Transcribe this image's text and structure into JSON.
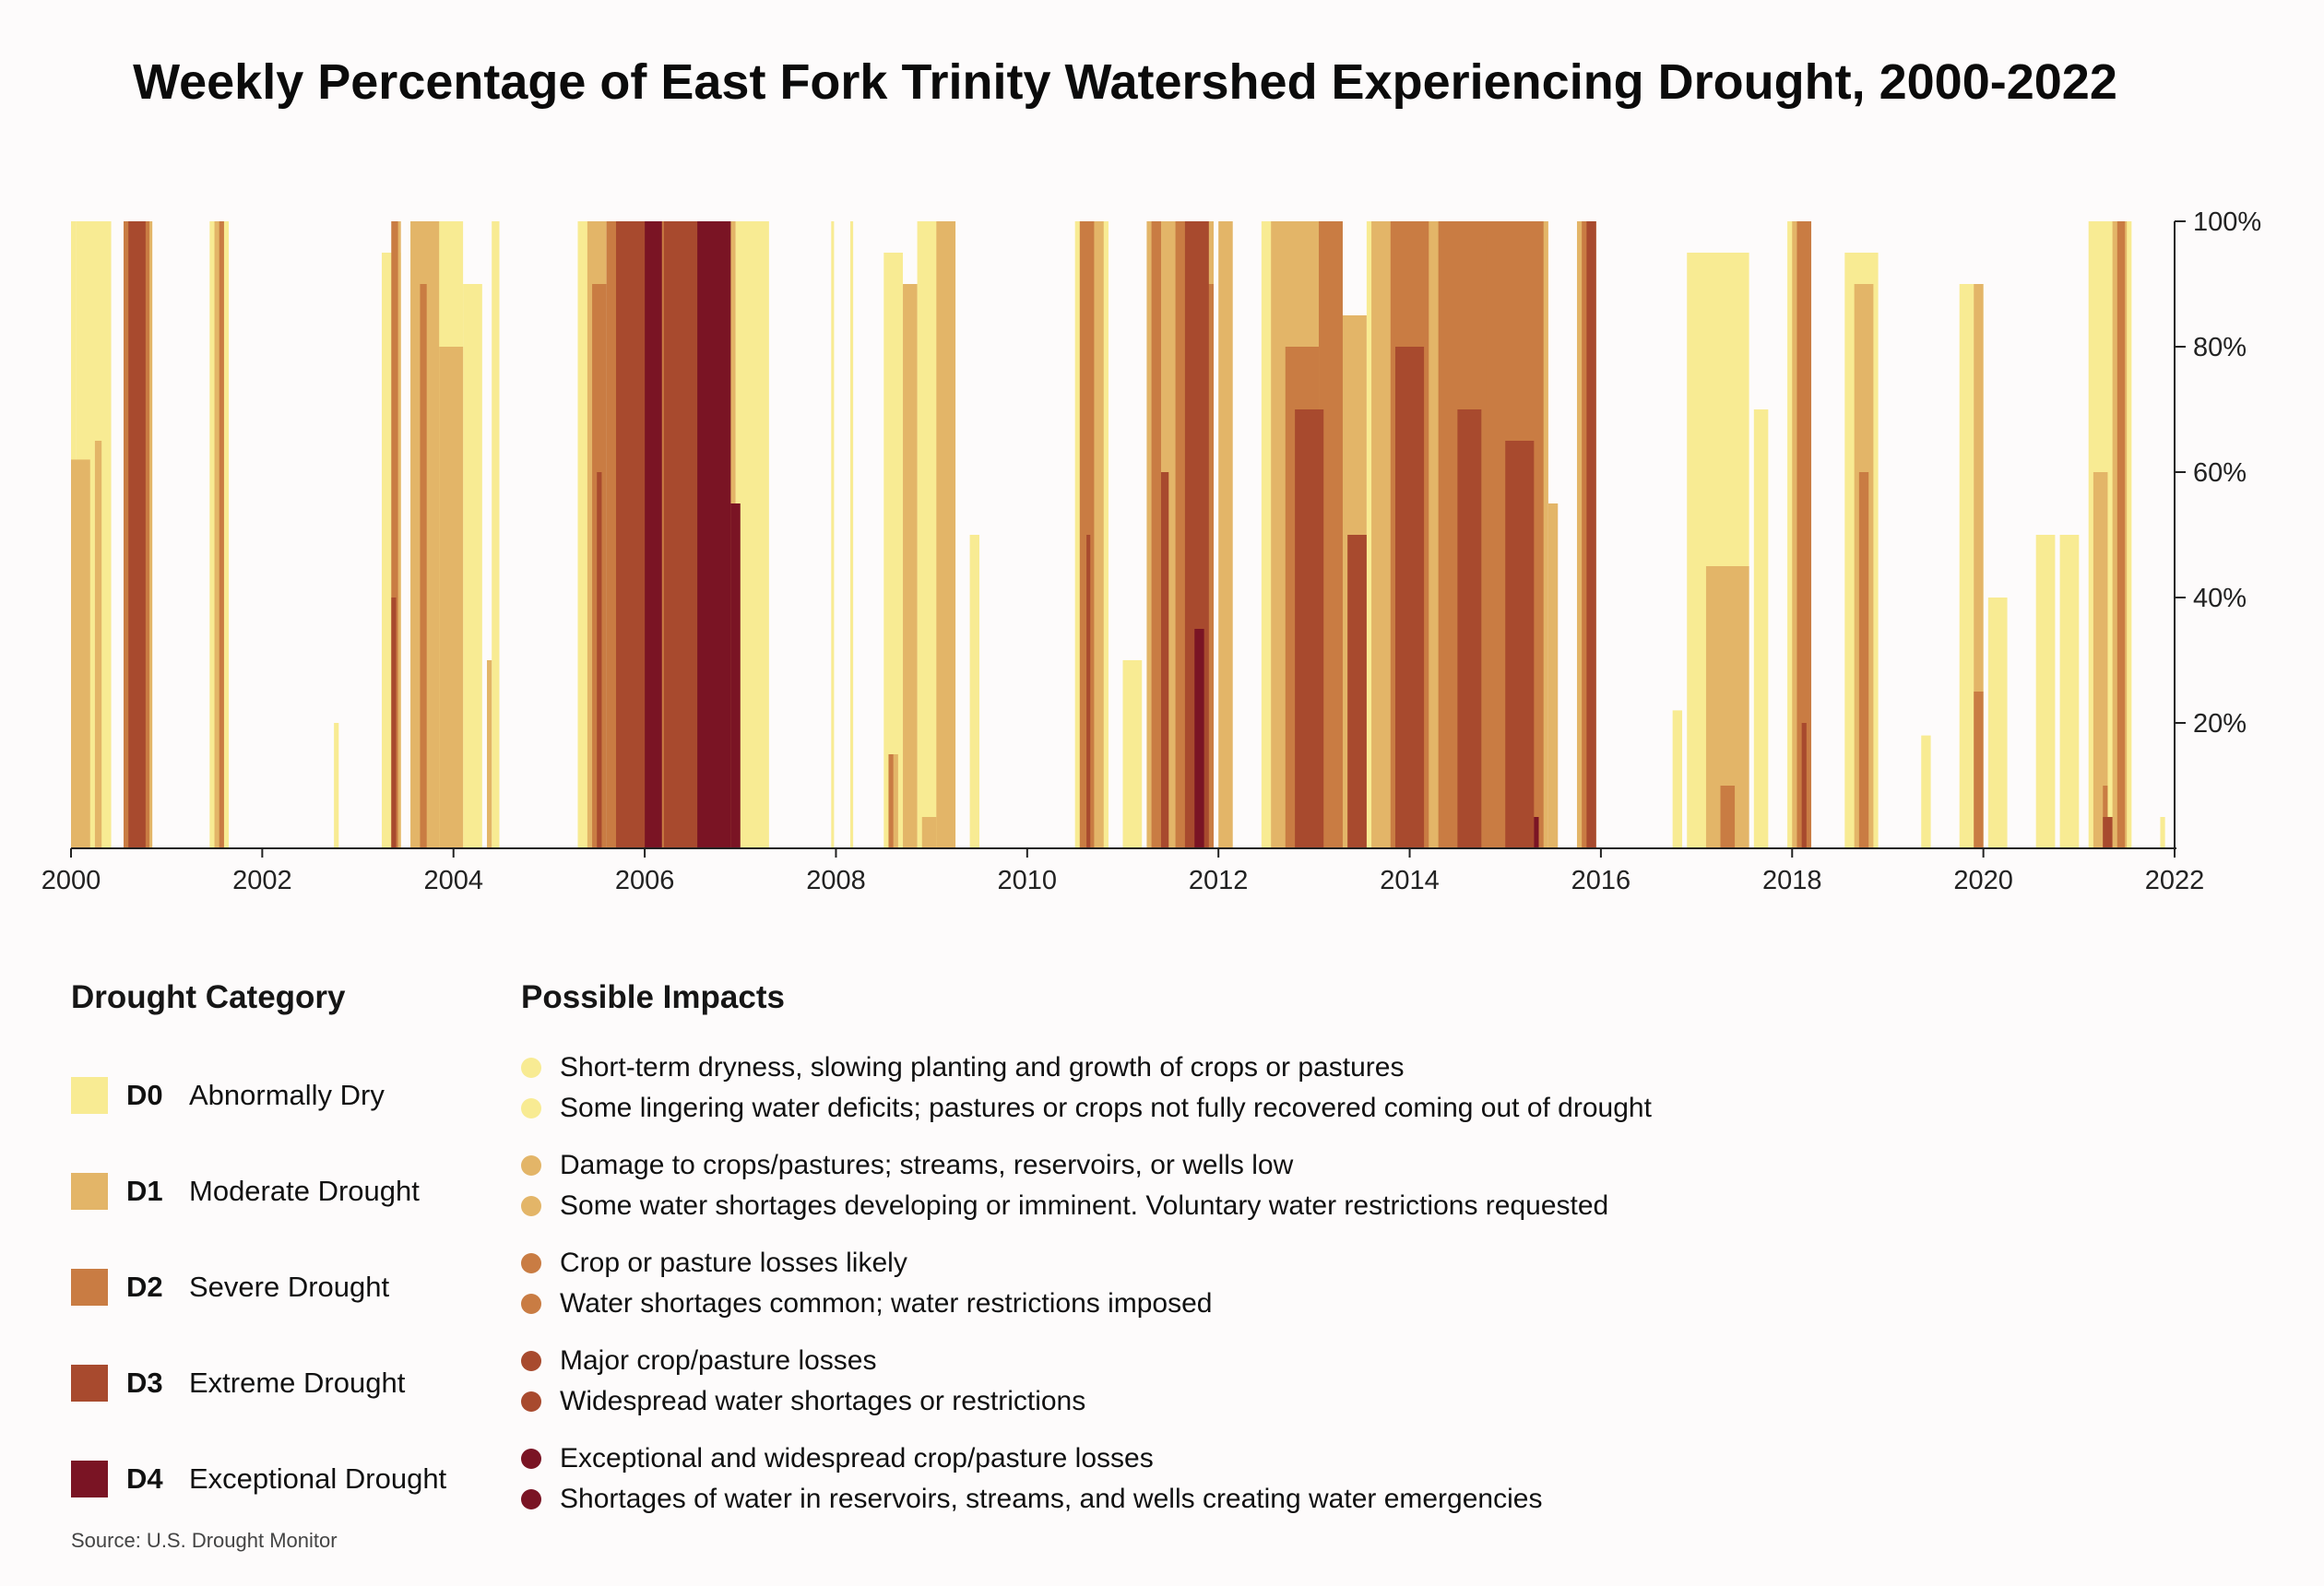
{
  "chart_data": {
    "type": "area",
    "title": "Weekly Percentage of East Fork Trinity Watershed Experiencing Drought, 2000-2022",
    "xlabel": "",
    "ylabel": "",
    "xlim": [
      2000,
      2022
    ],
    "ylim": [
      0,
      100
    ],
    "x_ticks": [
      "2000",
      "2002",
      "2004",
      "2006",
      "2008",
      "2010",
      "2012",
      "2014",
      "2016",
      "2018",
      "2020",
      "2022"
    ],
    "y_ticks": [
      "20%",
      "40%",
      "60%",
      "80%",
      "100%"
    ],
    "series": [
      {
        "name": "D0",
        "color": "#f8eb93",
        "segments": [
          [
            2000.0,
            2000.05,
            100
          ],
          [
            2000.05,
            2000.42,
            100
          ],
          [
            2000.55,
            2000.85,
            100
          ],
          [
            2001.45,
            2001.65,
            100
          ],
          [
            2002.75,
            2002.8,
            20
          ],
          [
            2003.25,
            2003.45,
            95
          ],
          [
            2003.55,
            2004.1,
            100
          ],
          [
            2004.1,
            2004.3,
            90
          ],
          [
            2004.4,
            2004.48,
            100
          ],
          [
            2005.3,
            2005.55,
            100
          ],
          [
            2006.95,
            2007.3,
            100
          ],
          [
            2007.95,
            2007.98,
            100
          ],
          [
            2008.15,
            2008.18,
            100
          ],
          [
            2008.5,
            2008.7,
            95
          ],
          [
            2008.85,
            2009.25,
            100
          ],
          [
            2009.4,
            2009.5,
            50
          ],
          [
            2010.5,
            2010.85,
            100
          ],
          [
            2011.0,
            2011.2,
            30
          ],
          [
            2011.35,
            2011.55,
            100
          ],
          [
            2012.45,
            2012.95,
            100
          ],
          [
            2013.55,
            2013.8,
            100
          ],
          [
            2016.75,
            2016.85,
            22
          ],
          [
            2016.9,
            2017.55,
            95
          ],
          [
            2017.6,
            2017.75,
            70
          ],
          [
            2017.95,
            2018.2,
            100
          ],
          [
            2018.55,
            2018.9,
            95
          ],
          [
            2019.35,
            2019.45,
            18
          ],
          [
            2019.75,
            2020.0,
            90
          ],
          [
            2020.05,
            2020.25,
            40
          ],
          [
            2020.55,
            2020.75,
            50
          ],
          [
            2020.8,
            2021.0,
            50
          ],
          [
            2021.1,
            2021.55,
            100
          ],
          [
            2021.85,
            2021.9,
            5
          ]
        ]
      },
      {
        "name": "D1",
        "color": "#e3b568",
        "segments": [
          [
            2000.0,
            2000.2,
            62
          ],
          [
            2000.25,
            2000.32,
            65
          ],
          [
            2000.55,
            2000.85,
            100
          ],
          [
            2001.5,
            2001.6,
            100
          ],
          [
            2003.35,
            2003.45,
            100
          ],
          [
            2003.55,
            2003.85,
            100
          ],
          [
            2003.85,
            2004.1,
            80
          ],
          [
            2004.35,
            2004.4,
            30
          ],
          [
            2005.4,
            2005.6,
            100
          ],
          [
            2006.7,
            2006.95,
            100
          ],
          [
            2008.55,
            2008.65,
            15
          ],
          [
            2008.7,
            2008.85,
            90
          ],
          [
            2008.9,
            2009.05,
            5
          ],
          [
            2009.05,
            2009.25,
            100
          ],
          [
            2010.55,
            2010.8,
            100
          ],
          [
            2011.25,
            2011.55,
            100
          ],
          [
            2011.7,
            2011.95,
            100
          ],
          [
            2012.0,
            2012.15,
            100
          ],
          [
            2012.55,
            2013.15,
            100
          ],
          [
            2013.15,
            2013.55,
            85
          ],
          [
            2013.6,
            2014.55,
            100
          ],
          [
            2014.55,
            2015.45,
            100
          ],
          [
            2015.45,
            2015.55,
            55
          ],
          [
            2015.75,
            2015.95,
            100
          ],
          [
            2017.1,
            2017.55,
            45
          ],
          [
            2018.0,
            2018.2,
            100
          ],
          [
            2018.65,
            2018.85,
            90
          ],
          [
            2019.9,
            2020.0,
            90
          ],
          [
            2021.15,
            2021.3,
            60
          ],
          [
            2021.35,
            2021.5,
            100
          ]
        ]
      },
      {
        "name": "D2",
        "color": "#c97c43",
        "segments": [
          [
            2000.55,
            2000.82,
            100
          ],
          [
            2001.55,
            2001.6,
            100
          ],
          [
            2003.35,
            2003.42,
            100
          ],
          [
            2003.65,
            2003.72,
            90
          ],
          [
            2005.45,
            2005.6,
            90
          ],
          [
            2005.6,
            2006.75,
            100
          ],
          [
            2008.55,
            2008.6,
            15
          ],
          [
            2010.55,
            2010.7,
            100
          ],
          [
            2011.3,
            2011.4,
            100
          ],
          [
            2011.55,
            2011.75,
            100
          ],
          [
            2011.75,
            2011.95,
            90
          ],
          [
            2012.7,
            2013.05,
            80
          ],
          [
            2013.05,
            2013.3,
            100
          ],
          [
            2013.8,
            2014.2,
            100
          ],
          [
            2014.3,
            2014.8,
            100
          ],
          [
            2014.8,
            2015.4,
            100
          ],
          [
            2015.8,
            2015.95,
            100
          ],
          [
            2017.25,
            2017.4,
            10
          ],
          [
            2018.05,
            2018.2,
            100
          ],
          [
            2018.7,
            2018.8,
            60
          ],
          [
            2019.9,
            2020.0,
            25
          ],
          [
            2021.25,
            2021.3,
            10
          ],
          [
            2021.4,
            2021.48,
            100
          ]
        ]
      },
      {
        "name": "D3",
        "color": "#a84a2e",
        "segments": [
          [
            2000.6,
            2000.78,
            100
          ],
          [
            2003.35,
            2003.4,
            40
          ],
          [
            2005.5,
            2005.55,
            60
          ],
          [
            2005.7,
            2006.0,
            100
          ],
          [
            2006.2,
            2006.6,
            100
          ],
          [
            2010.62,
            2010.66,
            50
          ],
          [
            2011.4,
            2011.48,
            60
          ],
          [
            2011.65,
            2011.9,
            100
          ],
          [
            2012.8,
            2013.1,
            70
          ],
          [
            2013.35,
            2013.55,
            50
          ],
          [
            2013.85,
            2014.15,
            80
          ],
          [
            2014.5,
            2014.75,
            70
          ],
          [
            2015.0,
            2015.3,
            65
          ],
          [
            2015.85,
            2015.95,
            100
          ],
          [
            2018.1,
            2018.15,
            20
          ],
          [
            2021.25,
            2021.35,
            5
          ]
        ]
      },
      {
        "name": "D4",
        "color": "#7a1424",
        "segments": [
          [
            2006.0,
            2006.18,
            100
          ],
          [
            2006.55,
            2006.9,
            100
          ],
          [
            2006.9,
            2007.0,
            55
          ],
          [
            2011.75,
            2011.85,
            35
          ],
          [
            2015.3,
            2015.35,
            5
          ]
        ]
      }
    ]
  },
  "legend": {
    "category_heading": "Drought Category",
    "impacts_heading": "Possible Impacts",
    "categories": [
      {
        "code": "D0",
        "label": "Abnormally Dry",
        "color": "#f8eb93"
      },
      {
        "code": "D1",
        "label": "Moderate Drought",
        "color": "#e3b568"
      },
      {
        "code": "D2",
        "label": "Severe Drought",
        "color": "#c97c43"
      },
      {
        "code": "D3",
        "label": "Extreme Drought",
        "color": "#a84a2e"
      },
      {
        "code": "D4",
        "label": "Exceptional Drought",
        "color": "#7a1424"
      }
    ],
    "impacts": [
      {
        "color": "#f8eb93",
        "lines": [
          "Short-term dryness, slowing planting and growth of crops or pastures",
          "Some lingering water deficits; pastures or crops not fully recovered coming out of drought"
        ]
      },
      {
        "color": "#e3b568",
        "lines": [
          "Damage to crops/pastures; streams, reservoirs, or wells low",
          "Some water shortages developing or imminent. Voluntary water restrictions requested"
        ]
      },
      {
        "color": "#c97c43",
        "lines": [
          "Crop or pasture losses likely",
          "Water shortages common; water restrictions imposed"
        ]
      },
      {
        "color": "#a84a2e",
        "lines": [
          "Major crop/pasture losses",
          "Widespread water shortages or restrictions"
        ]
      },
      {
        "color": "#7a1424",
        "lines": [
          "Exceptional and widespread crop/pasture losses",
          "Shortages of water in reservoirs, streams, and wells creating water emergencies"
        ]
      }
    ]
  },
  "source": "Source: U.S. Drought Monitor"
}
